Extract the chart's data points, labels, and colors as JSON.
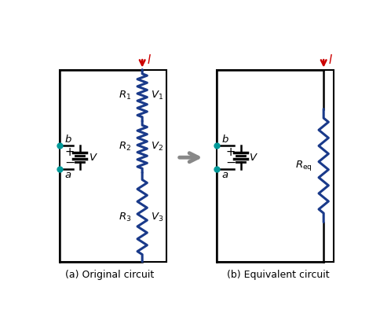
{
  "bg_color": "#ffffff",
  "line_color": "#000000",
  "resistor_color": "#1a3a8a",
  "dot_color": "#009999",
  "arrow_color": "#cc0000",
  "battery_color": "#000000",
  "arrow_gray": "#888888",
  "title_a": "(a) Original circuit",
  "title_b": "(b) Equivalent circuit"
}
